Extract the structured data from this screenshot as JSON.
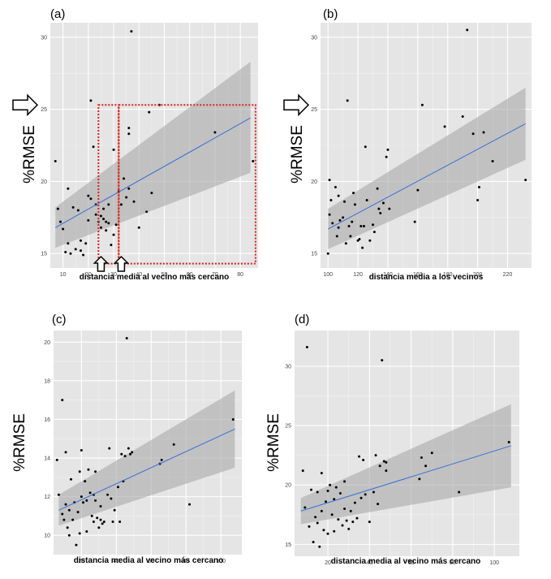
{
  "chart_data": [
    {
      "type": "scatter",
      "panel": "(a)",
      "ylabel": "%RMSE",
      "xlabel": "distancia media al vecino más cercano",
      "xlim": [
        5,
        87
      ],
      "ylim": [
        14.0,
        31.0
      ],
      "xticks": [
        10,
        20,
        30,
        40,
        50,
        60,
        70,
        80
      ],
      "yticks": [
        15,
        20,
        25,
        30
      ],
      "fit": {
        "x": [
          7,
          84
        ],
        "y": [
          16.8,
          24.4
        ],
        "ci_lower": [
          15.4,
          20.6
        ],
        "ci_upper": [
          18.2,
          28.3
        ]
      },
      "points": [
        [
          7,
          21.4
        ],
        [
          8,
          18.1
        ],
        [
          9,
          17.2
        ],
        [
          10,
          16.7
        ],
        [
          11,
          15.1
        ],
        [
          12,
          15.7
        ],
        [
          12,
          19.5
        ],
        [
          13,
          15.0
        ],
        [
          14,
          18.2
        ],
        [
          15,
          15.3
        ],
        [
          16,
          18.0
        ],
        [
          17,
          15.9
        ],
        [
          17,
          15.2
        ],
        [
          18,
          14.9
        ],
        [
          19,
          15.7
        ],
        [
          20,
          17.3
        ],
        [
          20,
          19.0
        ],
        [
          21,
          18.8
        ],
        [
          21,
          25.6
        ],
        [
          22,
          22.4
        ],
        [
          23,
          17.7
        ],
        [
          23,
          18.4
        ],
        [
          24,
          17.2
        ],
        [
          25,
          17.6
        ],
        [
          25,
          16.8
        ],
        [
          26,
          18.1
        ],
        [
          26,
          17.4
        ],
        [
          27,
          17.2
        ],
        [
          27,
          16.6
        ],
        [
          28,
          17.1
        ],
        [
          28,
          18.4
        ],
        [
          29,
          15.6
        ],
        [
          30,
          22.2
        ],
        [
          30,
          16.3
        ],
        [
          31,
          17.0
        ],
        [
          32,
          19.3
        ],
        [
          33,
          18.4
        ],
        [
          34,
          14.4
        ],
        [
          34,
          20.2
        ],
        [
          35,
          18.9
        ],
        [
          36,
          23.7
        ],
        [
          36,
          23.3
        ],
        [
          36,
          19.5
        ],
        [
          37,
          30.4
        ],
        [
          38,
          18.6
        ],
        [
          40,
          16.8
        ],
        [
          43,
          17.9
        ],
        [
          44,
          24.8
        ],
        [
          45,
          19.2
        ],
        [
          48,
          25.3
        ],
        [
          70,
          23.4
        ],
        [
          85,
          21.4
        ]
      ],
      "arrows_down_x": [
        25,
        33
      ],
      "side_arrow_y": 25.3,
      "highlight_boxes": [
        {
          "x": [
            24,
            32
          ],
          "y": [
            14.3,
            25.3
          ]
        },
        {
          "x": [
            32,
            86
          ],
          "y": [
            14.3,
            25.3
          ]
        }
      ]
    },
    {
      "type": "scatter",
      "panel": "(b)",
      "ylabel": "%RMSE",
      "xlabel": "distancia media a los vecinos",
      "xlim": [
        95,
        236
      ],
      "ylim": [
        14.0,
        31.0
      ],
      "xticks": [
        100,
        120,
        140,
        160,
        180,
        200,
        220
      ],
      "yticks": [
        15,
        20,
        25,
        30
      ],
      "fit": {
        "x": [
          100,
          232
        ],
        "y": [
          16.7,
          24.0
        ],
        "ci_lower": [
          15.3,
          21.5
        ],
        "ci_upper": [
          18.1,
          26.5
        ]
      },
      "points": [
        [
          100,
          15.0
        ],
        [
          101,
          17.7
        ],
        [
          101,
          20.1
        ],
        [
          102,
          18.7
        ],
        [
          103,
          17.1
        ],
        [
          105,
          19.6
        ],
        [
          106,
          16.2
        ],
        [
          107,
          16.8
        ],
        [
          107,
          19.0
        ],
        [
          108,
          17.3
        ],
        [
          110,
          17.5
        ],
        [
          111,
          18.6
        ],
        [
          112,
          15.7
        ],
        [
          113,
          25.6
        ],
        [
          114,
          16.9
        ],
        [
          115,
          16.2
        ],
        [
          116,
          17.2
        ],
        [
          117,
          19.2
        ],
        [
          118,
          18.4
        ],
        [
          120,
          15.9
        ],
        [
          121,
          16.0
        ],
        [
          122,
          16.9
        ],
        [
          123,
          15.4
        ],
        [
          124,
          16.9
        ],
        [
          125,
          22.4
        ],
        [
          126,
          18.7
        ],
        [
          128,
          15.9
        ],
        [
          130,
          17.0
        ],
        [
          131,
          16.5
        ],
        [
          133,
          19.5
        ],
        [
          134,
          18.1
        ],
        [
          135,
          17.8
        ],
        [
          137,
          18.5
        ],
        [
          139,
          21.7
        ],
        [
          140,
          22.2
        ],
        [
          141,
          18.1
        ],
        [
          158,
          17.2
        ],
        [
          160,
          19.4
        ],
        [
          163,
          25.3
        ],
        [
          178,
          23.8
        ],
        [
          190,
          24.5
        ],
        [
          193,
          30.5
        ],
        [
          197,
          23.3
        ],
        [
          200,
          18.7
        ],
        [
          201,
          19.6
        ],
        [
          204,
          23.4
        ],
        [
          210,
          21.4
        ],
        [
          232,
          20.1
        ]
      ],
      "side_arrow_y": 25.3
    },
    {
      "type": "scatter",
      "panel": "(c)",
      "ylabel": "%RMSE",
      "xlabel": "distancia media al vecino más cercano",
      "xlim": [
        4,
        112
      ],
      "ylim": [
        9.0,
        20.6
      ],
      "xticks": [
        20,
        40,
        60,
        80,
        100
      ],
      "yticks": [
        10,
        12,
        14,
        16,
        18,
        20
      ],
      "fit": {
        "x": [
          7,
          108
        ],
        "y": [
          11.3,
          15.5
        ],
        "ci_lower": [
          10.5,
          13.5
        ],
        "ci_upper": [
          12.1,
          17.5
        ]
      },
      "points": [
        [
          6,
          13.9
        ],
        [
          7,
          12.1
        ],
        [
          9,
          17.0
        ],
        [
          9,
          11.1
        ],
        [
          10,
          10.8
        ],
        [
          11,
          14.3
        ],
        [
          11,
          11.6
        ],
        [
          12,
          10.4
        ],
        [
          13,
          10.0
        ],
        [
          13,
          11.3
        ],
        [
          14,
          12.9
        ],
        [
          15,
          10.8
        ],
        [
          16,
          11.7
        ],
        [
          17,
          9.5
        ],
        [
          18,
          11.2
        ],
        [
          19,
          13.3
        ],
        [
          19,
          10.1
        ],
        [
          20,
          14.4
        ],
        [
          20,
          12.0
        ],
        [
          21,
          11.7
        ],
        [
          22,
          12.8
        ],
        [
          23,
          10.2
        ],
        [
          23,
          11.8
        ],
        [
          24,
          13.4
        ],
        [
          25,
          12.2
        ],
        [
          26,
          11.0
        ],
        [
          27,
          10.7
        ],
        [
          27,
          12.1
        ],
        [
          28,
          13.3
        ],
        [
          28,
          11.8
        ],
        [
          29,
          10.9
        ],
        [
          30,
          10.4
        ],
        [
          31,
          10.8
        ],
        [
          31,
          11.5
        ],
        [
          32,
          10.6
        ],
        [
          33,
          10.7
        ],
        [
          35,
          12.1
        ],
        [
          36,
          14.5
        ],
        [
          37,
          11.9
        ],
        [
          38,
          10.7
        ],
        [
          39,
          11.3
        ],
        [
          41,
          12.5
        ],
        [
          42,
          10.7
        ],
        [
          43,
          14.2
        ],
        [
          44,
          12.8
        ],
        [
          45,
          14.1
        ],
        [
          46,
          20.2
        ],
        [
          47,
          14.5
        ],
        [
          48,
          14.2
        ],
        [
          49,
          14.3
        ],
        [
          65,
          13.7
        ],
        [
          66,
          13.9
        ],
        [
          73,
          14.7
        ],
        [
          82,
          11.6
        ],
        [
          107,
          16.0
        ]
      ]
    },
    {
      "type": "scatter",
      "panel": "(d)",
      "ylabel": "%RMSE",
      "xlabel": "distancia media al vecino más cercano",
      "xlim": [
        4,
        112
      ],
      "ylim": [
        14.0,
        33.0
      ],
      "xticks": [
        20,
        40,
        60,
        80,
        100
      ],
      "yticks": [
        15,
        20,
        25,
        30
      ],
      "fit": {
        "x": [
          7,
          108
        ],
        "y": [
          17.8,
          23.3
        ],
        "ci_lower": [
          16.7,
          19.8
        ],
        "ci_upper": [
          18.9,
          26.8
        ]
      },
      "points": [
        [
          8,
          21.2
        ],
        [
          9,
          18.1
        ],
        [
          10,
          31.6
        ],
        [
          11,
          16.5
        ],
        [
          12,
          19.6
        ],
        [
          13,
          15.2
        ],
        [
          14,
          17.3
        ],
        [
          15,
          16.8
        ],
        [
          15,
          19.4
        ],
        [
          16,
          14.8
        ],
        [
          17,
          21.0
        ],
        [
          17,
          17.8
        ],
        [
          18,
          16.2
        ],
        [
          19,
          18.6
        ],
        [
          20,
          19.5
        ],
        [
          20,
          15.9
        ],
        [
          21,
          20.0
        ],
        [
          22,
          17.5
        ],
        [
          23,
          16.1
        ],
        [
          23,
          18.8
        ],
        [
          24,
          19.8
        ],
        [
          25,
          17.1
        ],
        [
          26,
          19.3
        ],
        [
          27,
          16.6
        ],
        [
          28,
          18.0
        ],
        [
          28,
          20.3
        ],
        [
          29,
          17.0
        ],
        [
          30,
          16.3
        ],
        [
          31,
          17.8
        ],
        [
          32,
          16.9
        ],
        [
          33,
          18.5
        ],
        [
          34,
          17.2
        ],
        [
          35,
          22.4
        ],
        [
          36,
          18.9
        ],
        [
          37,
          22.1
        ],
        [
          38,
          19.2
        ],
        [
          40,
          16.9
        ],
        [
          42,
          19.4
        ],
        [
          43,
          22.5
        ],
        [
          44,
          18.4
        ],
        [
          45,
          21.6
        ],
        [
          46,
          30.5
        ],
        [
          47,
          22.0
        ],
        [
          48,
          21.9
        ],
        [
          48,
          21.2
        ],
        [
          64,
          20.5
        ],
        [
          65,
          22.3
        ],
        [
          67,
          21.6
        ],
        [
          70,
          22.7
        ],
        [
          83,
          19.4
        ],
        [
          107,
          23.6
        ]
      ]
    }
  ]
}
